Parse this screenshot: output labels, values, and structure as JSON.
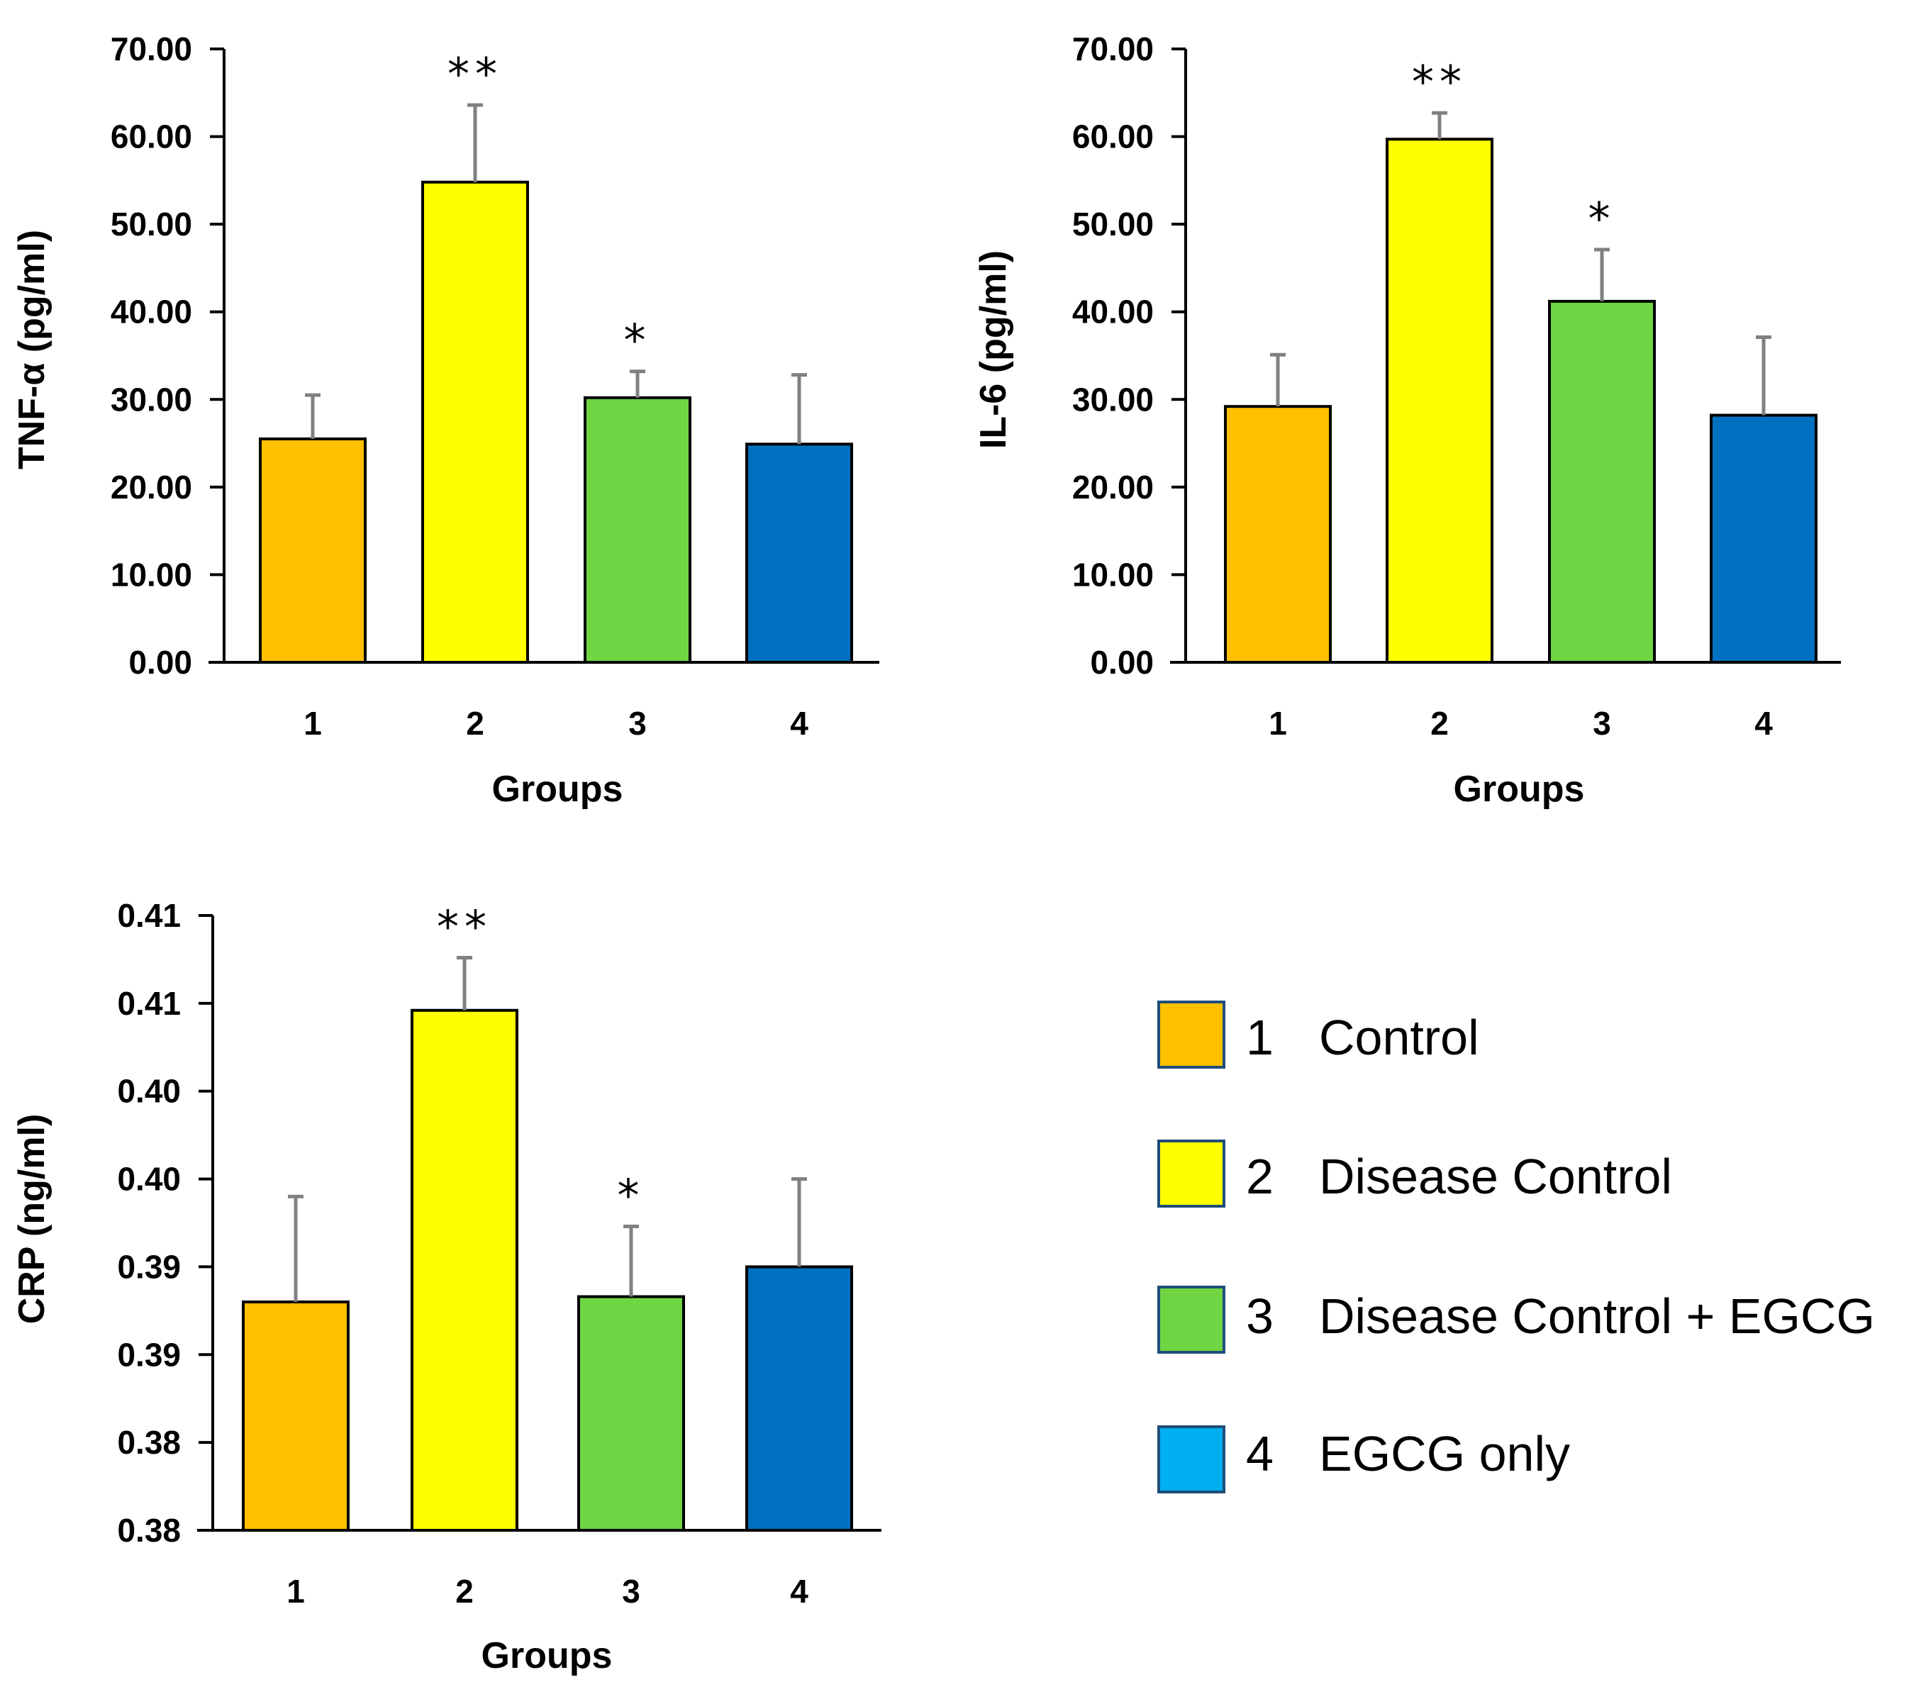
{
  "chart_data": [
    {
      "id": "tnf",
      "type": "bar",
      "title": "",
      "xlabel": "Groups",
      "ylabel": "TNF-α (pg/ml)",
      "categories": [
        "1",
        "2",
        "3",
        "4"
      ],
      "values": [
        25.5,
        54.8,
        30.2,
        24.9
      ],
      "errors": [
        5.0,
        8.8,
        3.0,
        7.9
      ],
      "significance": [
        "",
        "**",
        "*",
        ""
      ],
      "ylim": [
        0,
        70
      ],
      "yticks": [
        "0.00",
        "10.00",
        "20.00",
        "30.00",
        "40.00",
        "50.00",
        "60.00",
        "70.00"
      ]
    },
    {
      "id": "il6",
      "type": "bar",
      "title": "",
      "xlabel": "Groups",
      "ylabel": "IL-6 (pg/ml)",
      "categories": [
        "1",
        "2",
        "3",
        "4"
      ],
      "values": [
        29.2,
        59.7,
        41.2,
        28.2
      ],
      "errors": [
        5.9,
        3.0,
        5.9,
        8.9
      ],
      "significance": [
        "",
        "**",
        "*",
        ""
      ],
      "ylim": [
        0,
        70
      ],
      "yticks": [
        "0.00",
        "10.00",
        "20.00",
        "30.00",
        "40.00",
        "50.00",
        "60.00",
        "70.00"
      ]
    },
    {
      "id": "crp",
      "type": "bar",
      "title": "",
      "xlabel": "Groups",
      "ylabel": "CRP (ng/ml)",
      "categories": [
        "1",
        "2",
        "3",
        "4"
      ],
      "values": [
        0.388,
        0.4046,
        0.3883,
        0.39
      ],
      "errors": [
        0.006,
        0.003,
        0.004,
        0.005
      ],
      "significance": [
        "",
        "**",
        "*",
        ""
      ],
      "ylim": [
        0.375,
        0.41
      ],
      "yticks": [
        "0.38",
        "0.38",
        "0.39",
        "0.39",
        "0.40",
        "0.40",
        "0.41",
        "0.41"
      ]
    }
  ],
  "colors": {
    "group1": "#FFC000",
    "group2": "#FFFF00",
    "group3": "#70D543",
    "group4": "#0070C0",
    "legend4": "#00B0F0",
    "error_bar": "#808080",
    "bar_outline": "#000000",
    "legend_outline": "#1F4E79"
  },
  "legend": {
    "items": [
      {
        "number": "1",
        "label": "Control"
      },
      {
        "number": "2",
        "label": "Disease Control"
      },
      {
        "number": "3",
        "label": "Disease Control + EGCG"
      },
      {
        "number": "4",
        "label": "EGCG only"
      }
    ]
  }
}
